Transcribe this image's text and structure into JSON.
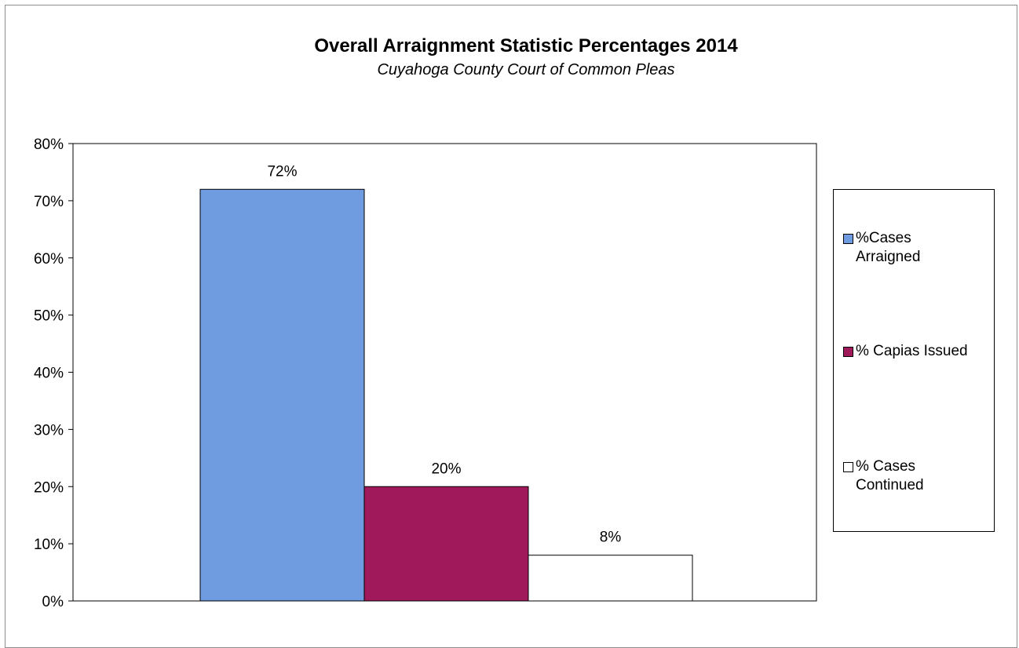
{
  "chart_data": {
    "type": "bar",
    "title": "Overall Arraignment Statistic Percentages 2014",
    "subtitle": "Cuyahoga County Court of Common Pleas",
    "categories": [
      "%Cases Arraigned",
      "% Capias Issued",
      "% Cases Continued"
    ],
    "values": [
      72,
      20,
      8
    ],
    "data_labels": [
      "72%",
      "20%",
      "8%"
    ],
    "colors": [
      "#6f9be0",
      "#a0195a",
      "#ffffff"
    ],
    "ylim": [
      0,
      80
    ],
    "y_ticks": [
      "0%",
      "10%",
      "20%",
      "30%",
      "40%",
      "50%",
      "60%",
      "70%",
      "80%"
    ],
    "grid": false,
    "legend_position": "right",
    "legend": [
      {
        "lines": [
          "%Cases",
          "Arraigned"
        ]
      },
      {
        "lines": [
          "% Capias Issued"
        ]
      },
      {
        "lines": [
          "% Cases",
          "Continued"
        ]
      }
    ]
  }
}
